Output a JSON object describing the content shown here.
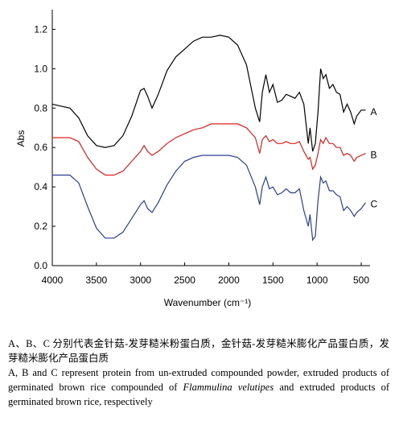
{
  "chart_data": {
    "type": "line",
    "x_label": "Wavenumber (cm⁻¹)",
    "y_label": "Abs",
    "x": [
      4000,
      3800,
      3700,
      3600,
      3500,
      3400,
      3300,
      3200,
      3100,
      3000,
      2960,
      2920,
      2870,
      2800,
      2700,
      2600,
      2500,
      2400,
      2300,
      2200,
      2100,
      2000,
      1900,
      1800,
      1700,
      1650,
      1620,
      1580,
      1540,
      1500,
      1450,
      1400,
      1350,
      1300,
      1250,
      1200,
      1150,
      1100,
      1080,
      1050,
      1020,
      990,
      960,
      930,
      900,
      860,
      820,
      780,
      740,
      700,
      660,
      620,
      580,
      550,
      500,
      450
    ],
    "series": [
      {
        "name": "A",
        "color": "#000000",
        "values": [
          0.82,
          0.8,
          0.75,
          0.66,
          0.61,
          0.6,
          0.61,
          0.66,
          0.76,
          0.89,
          0.9,
          0.86,
          0.8,
          0.87,
          0.99,
          1.06,
          1.1,
          1.14,
          1.16,
          1.16,
          1.17,
          1.16,
          1.12,
          1.02,
          0.8,
          0.73,
          0.88,
          0.97,
          0.88,
          0.92,
          0.83,
          0.84,
          0.87,
          0.86,
          0.85,
          0.88,
          0.82,
          0.62,
          0.7,
          0.58,
          0.62,
          0.78,
          1.0,
          0.95,
          0.97,
          0.9,
          0.92,
          0.88,
          0.87,
          0.78,
          0.82,
          0.78,
          0.72,
          0.76,
          0.79,
          0.79
        ]
      },
      {
        "name": "B",
        "color": "#e0201c",
        "values": [
          0.65,
          0.65,
          0.63,
          0.55,
          0.49,
          0.46,
          0.46,
          0.48,
          0.53,
          0.58,
          0.61,
          0.58,
          0.56,
          0.58,
          0.62,
          0.65,
          0.67,
          0.69,
          0.7,
          0.72,
          0.72,
          0.72,
          0.72,
          0.7,
          0.65,
          0.57,
          0.64,
          0.66,
          0.63,
          0.64,
          0.62,
          0.62,
          0.63,
          0.62,
          0.62,
          0.63,
          0.58,
          0.54,
          0.55,
          0.49,
          0.51,
          0.57,
          0.64,
          0.62,
          0.65,
          0.62,
          0.62,
          0.6,
          0.6,
          0.56,
          0.57,
          0.56,
          0.53,
          0.55,
          0.56,
          0.57
        ]
      },
      {
        "name": "C",
        "color": "#2b3f8f",
        "values": [
          0.46,
          0.46,
          0.42,
          0.3,
          0.19,
          0.14,
          0.14,
          0.17,
          0.24,
          0.31,
          0.33,
          0.29,
          0.27,
          0.32,
          0.41,
          0.48,
          0.53,
          0.55,
          0.56,
          0.56,
          0.56,
          0.56,
          0.55,
          0.51,
          0.4,
          0.31,
          0.4,
          0.45,
          0.39,
          0.4,
          0.36,
          0.37,
          0.39,
          0.37,
          0.37,
          0.39,
          0.28,
          0.2,
          0.26,
          0.13,
          0.15,
          0.33,
          0.45,
          0.42,
          0.43,
          0.38,
          0.38,
          0.36,
          0.35,
          0.28,
          0.3,
          0.28,
          0.25,
          0.27,
          0.29,
          0.32
        ]
      }
    ],
    "xlim": [
      4000,
      400
    ],
    "xticks": [
      4000,
      3500,
      3000,
      2500,
      2000,
      1500,
      1000,
      500
    ],
    "ylim": [
      0,
      1.3
    ],
    "yticks": [
      {
        "value": 0,
        "label": "0.0"
      },
      0.2,
      0.4,
      0.6,
      0.8,
      {
        "value": 1,
        "label": "1.0"
      },
      1.2
    ],
    "grid": false
  },
  "caption": {
    "zh": "A、B、C 分别代表金针菇-发芽糙米粉蛋白质，金针菇-发芽糙米膨化产品蛋白质，发芽糙米膨化产品蛋白质",
    "en": [
      "A, B and C represent protein from un-extruded compounded powder, extruded products of germinated brown rice compounded of ",
      "Flammulina velutipes",
      " and extruded products of germinated brown rice, respectively"
    ]
  }
}
